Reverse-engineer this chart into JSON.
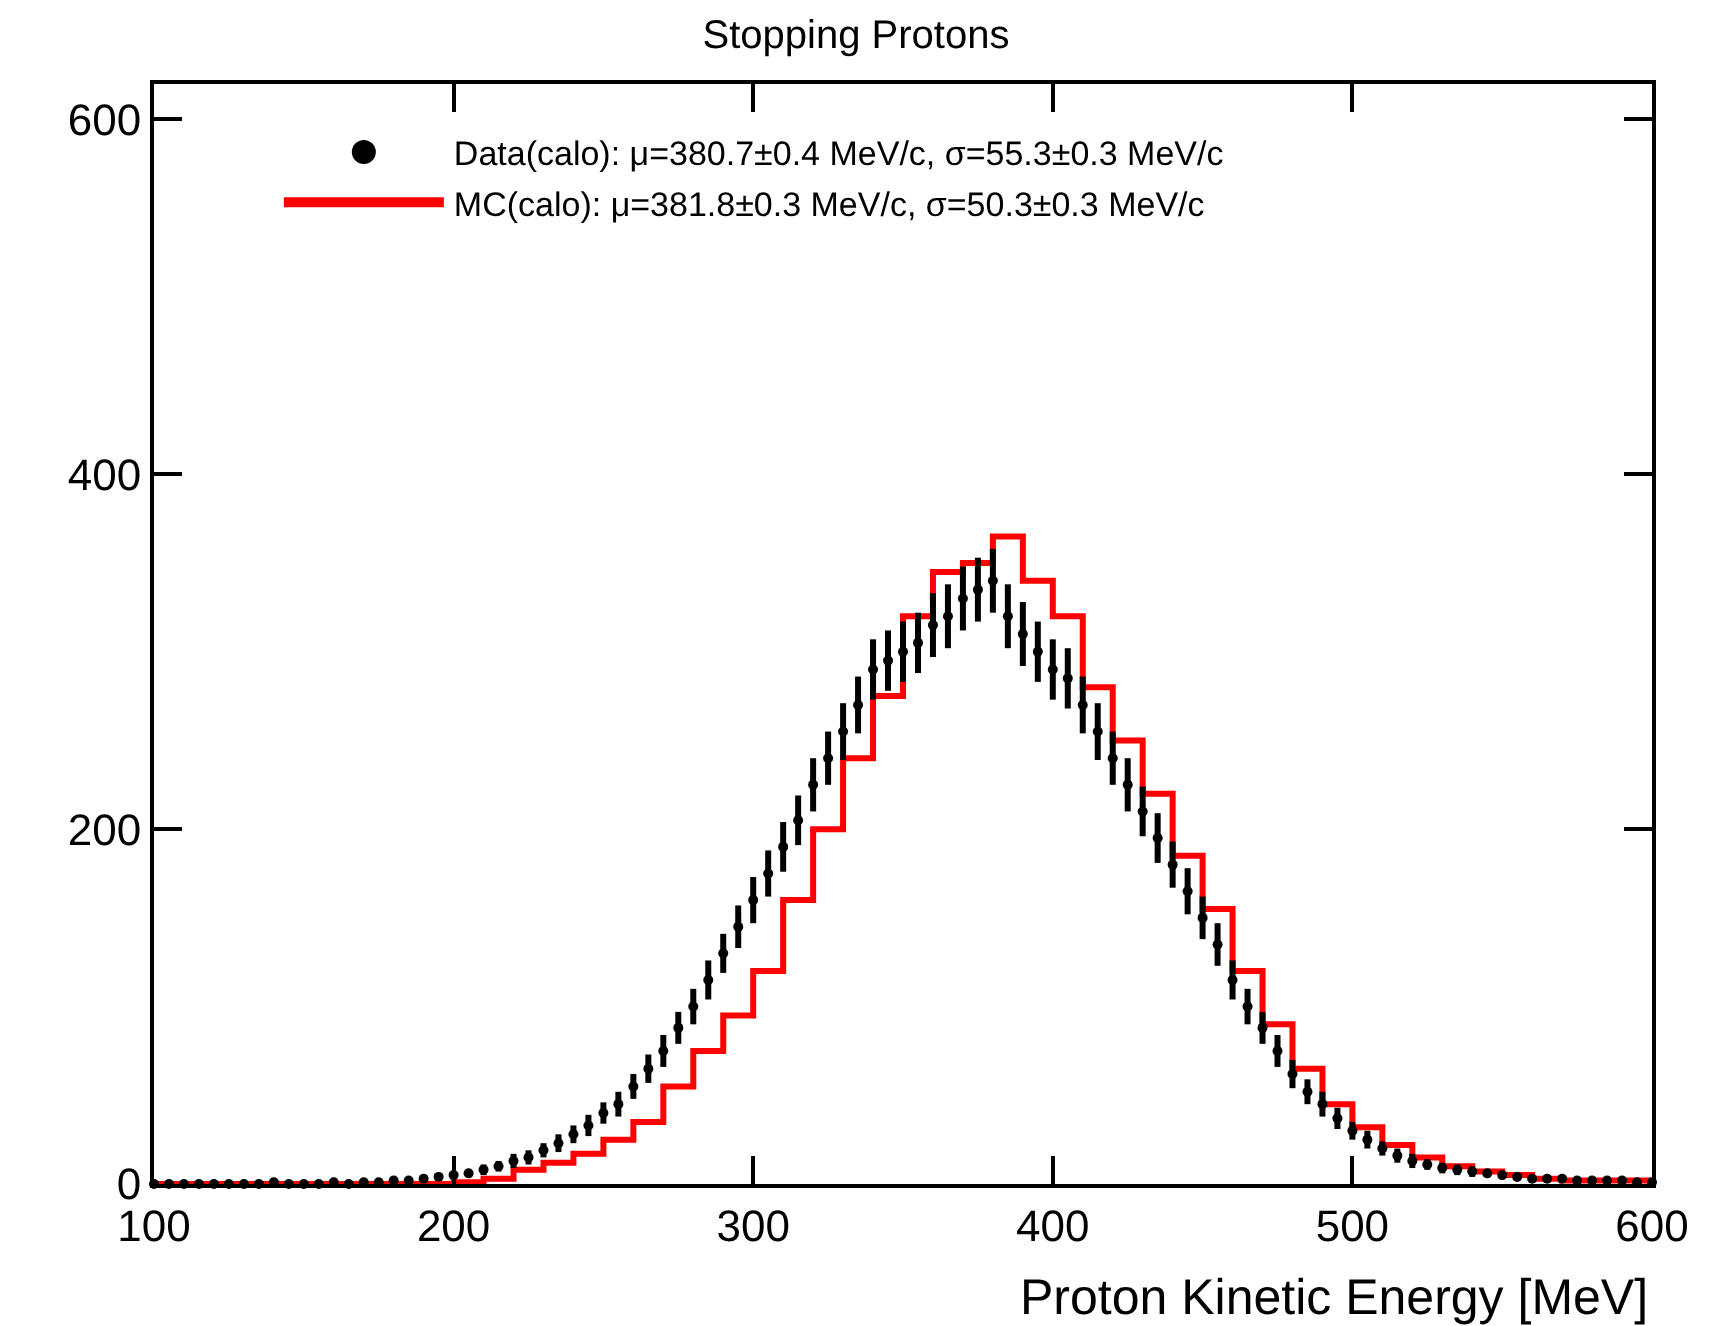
{
  "chart_data": {
    "type": "step",
    "title": "Stopping Protons",
    "xlabel": "Proton Kinetic Energy [MeV]",
    "xlim": [
      100,
      600
    ],
    "xticks": [
      100,
      200,
      300,
      400,
      500,
      600
    ],
    "ylim": [
      0,
      620
    ],
    "yticks": [
      0,
      200,
      400,
      600
    ],
    "legend": "top",
    "series": [
      {
        "type": "scatter",
        "marker": "circle",
        "name": "Data(calo): μ=380.7±0.4 MeV/c, σ=55.3±0.3 MeV/c",
        "color": "#000000",
        "x": [
          100,
          105,
          110,
          115,
          120,
          125,
          130,
          135,
          140,
          145,
          150,
          155,
          160,
          165,
          170,
          175,
          180,
          185,
          190,
          195,
          200,
          205,
          210,
          215,
          220,
          225,
          230,
          235,
          240,
          245,
          250,
          255,
          260,
          265,
          270,
          275,
          280,
          285,
          290,
          295,
          300,
          305,
          310,
          315,
          320,
          325,
          330,
          335,
          340,
          345,
          350,
          355,
          360,
          365,
          370,
          375,
          380,
          385,
          390,
          395,
          400,
          405,
          410,
          415,
          420,
          425,
          430,
          435,
          440,
          445,
          450,
          455,
          460,
          465,
          470,
          475,
          480,
          485,
          490,
          495,
          500,
          505,
          510,
          515,
          520,
          525,
          530,
          535,
          540,
          545,
          550,
          555,
          560,
          565,
          570,
          575,
          580,
          585,
          590,
          595,
          600
        ],
        "values": [
          0,
          0,
          0,
          0,
          0,
          0,
          0,
          0,
          1,
          0,
          0,
          0,
          1,
          0,
          1,
          1,
          2,
          2,
          3,
          4,
          5,
          6,
          8,
          10,
          13,
          15,
          19,
          23,
          28,
          33,
          40,
          45,
          55,
          65,
          75,
          88,
          100,
          115,
          130,
          145,
          160,
          175,
          190,
          205,
          225,
          240,
          255,
          270,
          290,
          295,
          300,
          305,
          315,
          320,
          330,
          335,
          340,
          320,
          310,
          300,
          290,
          285,
          270,
          255,
          240,
          225,
          210,
          195,
          180,
          165,
          150,
          135,
          115,
          100,
          88,
          75,
          62,
          52,
          45,
          37,
          30,
          25,
          20,
          16,
          13,
          11,
          9,
          8,
          7,
          6,
          5,
          4,
          3,
          3,
          3,
          2,
          2,
          2,
          2,
          1,
          1
        ],
        "errors": [
          null,
          null,
          null,
          null,
          null,
          null,
          null,
          null,
          null,
          null,
          null,
          null,
          null,
          null,
          null,
          null,
          null,
          null,
          null,
          null,
          null,
          null,
          3,
          3,
          4,
          4,
          4,
          5,
          5,
          6,
          6,
          7,
          7,
          8,
          9,
          9,
          10,
          11,
          11,
          12,
          13,
          13,
          14,
          14,
          15,
          15,
          16,
          16,
          17,
          17,
          17,
          17,
          18,
          18,
          18,
          18,
          18,
          18,
          18,
          17,
          17,
          17,
          16,
          16,
          15,
          15,
          14,
          14,
          13,
          13,
          12,
          12,
          11,
          10,
          9,
          9,
          8,
          7,
          7,
          6,
          5,
          5,
          4,
          4,
          4,
          3,
          3,
          3,
          3,
          null,
          null,
          null,
          null,
          null,
          null,
          null,
          null,
          null,
          null,
          null,
          null
        ]
      },
      {
        "name": "MC(calo): μ=381.8±0.3 MeV/c, σ=50.3±0.3 MeV/c",
        "color": "#ff0000",
        "x": [
          100,
          110,
          120,
          130,
          140,
          150,
          160,
          170,
          180,
          190,
          200,
          210,
          220,
          230,
          240,
          250,
          260,
          270,
          280,
          290,
          300,
          310,
          320,
          330,
          340,
          350,
          360,
          370,
          380,
          390,
          400,
          410,
          420,
          430,
          440,
          450,
          460,
          470,
          480,
          490,
          500,
          510,
          520,
          530,
          540,
          550,
          560,
          570,
          580,
          590,
          600
        ],
        "values": [
          0,
          0,
          0,
          0,
          0,
          0,
          0,
          0,
          0,
          0,
          1,
          3,
          8,
          12,
          17,
          25,
          35,
          55,
          75,
          95,
          120,
          160,
          200,
          240,
          275,
          320,
          345,
          350,
          365,
          340,
          320,
          280,
          250,
          220,
          185,
          155,
          120,
          90,
          65,
          45,
          32,
          22,
          15,
          10,
          7,
          5,
          3,
          2,
          2,
          2,
          2
        ]
      }
    ]
  }
}
